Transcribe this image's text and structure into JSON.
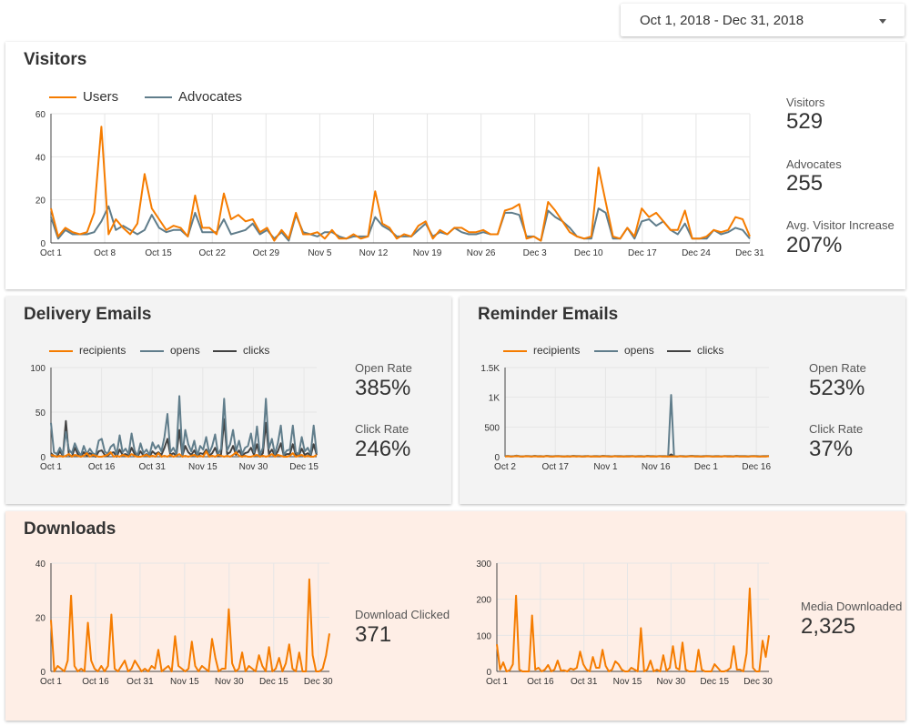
{
  "date_range": {
    "label": "Oct 1, 2018 - Dec 31, 2018"
  },
  "colors": {
    "orange": "#f57c00",
    "slate": "#607d8b",
    "dark": "#455a64",
    "panel_gray": "#f3f3f3",
    "panel_peach": "#feeee6"
  },
  "visitors": {
    "title": "Visitors",
    "legend": [
      "Users",
      "Advocates"
    ],
    "kpis": [
      {
        "label": "Visitors",
        "value": "529"
      },
      {
        "label": "Advocates",
        "value": "255"
      },
      {
        "label": "Avg. Visitor Increase",
        "value": "207%"
      }
    ]
  },
  "delivery": {
    "title": "Delivery Emails",
    "legend": [
      "recipients",
      "opens",
      "clicks"
    ],
    "kpis": [
      {
        "label": "Open Rate",
        "value": "385%"
      },
      {
        "label": "Click Rate",
        "value": "246%"
      }
    ]
  },
  "reminder": {
    "title": "Reminder Emails",
    "legend": [
      "recipients",
      "opens",
      "clicks"
    ],
    "kpis": [
      {
        "label": "Open Rate",
        "value": "523%"
      },
      {
        "label": "Click Rate",
        "value": "37%"
      }
    ]
  },
  "downloads": {
    "title": "Downloads",
    "kpis": [
      {
        "label": "Download Clicked",
        "value": "371"
      },
      {
        "label": "Media Downloaded",
        "value": "2,325"
      }
    ]
  },
  "chart_data": [
    {
      "type": "line",
      "x_ticks": [
        "Oct 1",
        "Oct 8",
        "Oct 15",
        "Oct 22",
        "Oct 29",
        "Nov 5",
        "Nov 12",
        "Nov 19",
        "Nov 26",
        "Dec 3",
        "Dec 10",
        "Dec 17",
        "Dec 24",
        "Dec 31"
      ],
      "y_ticks": [
        0,
        20,
        40,
        60
      ],
      "ylim": [
        0,
        60
      ],
      "series": [
        {
          "name": "Users",
          "color": "#f57c00",
          "values": [
            16,
            3,
            7,
            5,
            4,
            5,
            14,
            54,
            4,
            11,
            7,
            4,
            9,
            32,
            16,
            11,
            6,
            8,
            7,
            3,
            22,
            7,
            7,
            4,
            23,
            11,
            13,
            10,
            11,
            5,
            7,
            1,
            6,
            2,
            14,
            4,
            4,
            5,
            2,
            6,
            2,
            2,
            4,
            2,
            3,
            24,
            9,
            7,
            2,
            4,
            3,
            8,
            10,
            2,
            6,
            4,
            7,
            7,
            5,
            5,
            6,
            4,
            4,
            15,
            16,
            18,
            2,
            3,
            1,
            19,
            15,
            10,
            5,
            3,
            2,
            3,
            35,
            19,
            3,
            2,
            7,
            3,
            16,
            12,
            14,
            10,
            6,
            6,
            15,
            2,
            2,
            3,
            6,
            5,
            6,
            12,
            11,
            3
          ]
        },
        {
          "name": "Advocates",
          "color": "#607d8b",
          "values": [
            12,
            2,
            6,
            4,
            4,
            4,
            5,
            10,
            17,
            6,
            8,
            6,
            4,
            6,
            13,
            7,
            5,
            6,
            6,
            3,
            14,
            5,
            5,
            5,
            11,
            4,
            5,
            6,
            9,
            4,
            6,
            2,
            5,
            1,
            13,
            5,
            4,
            3,
            5,
            5,
            3,
            2,
            3,
            3,
            3,
            12,
            8,
            6,
            3,
            3,
            3,
            6,
            9,
            3,
            5,
            4,
            7,
            5,
            4,
            4,
            5,
            4,
            4,
            14,
            14,
            13,
            3,
            3,
            1,
            15,
            12,
            10,
            7,
            3,
            2,
            2,
            16,
            14,
            2,
            2,
            7,
            2,
            10,
            11,
            8,
            10,
            6,
            4,
            9,
            2,
            2,
            2,
            6,
            4,
            5,
            7,
            6,
            2
          ]
        }
      ]
    },
    {
      "type": "line",
      "x_ticks": [
        "Oct 1",
        "Oct 16",
        "Oct 31",
        "Nov 15",
        "Nov 30",
        "Dec 15"
      ],
      "y_ticks": [
        0,
        50,
        100
      ],
      "ylim": [
        0,
        100
      ],
      "series": [
        {
          "name": "recipients",
          "color": "#f57c00",
          "values": [
            2,
            1,
            0,
            1,
            0,
            1,
            3,
            0,
            2,
            1,
            0,
            1,
            4,
            0,
            2,
            1,
            0,
            0,
            1,
            2,
            5,
            0,
            1,
            0,
            2,
            1,
            0,
            3,
            1,
            0,
            0,
            1,
            2,
            0,
            1,
            0,
            4,
            0,
            1,
            0,
            2,
            0,
            1,
            3,
            0,
            1,
            0,
            1,
            2,
            0,
            1,
            0,
            6,
            0,
            1,
            0,
            2,
            1,
            0,
            1,
            0,
            2,
            5,
            1,
            0,
            1,
            0,
            0,
            1,
            2,
            0,
            1,
            0,
            1,
            3,
            0,
            2,
            1,
            0,
            0,
            1,
            4,
            0,
            1,
            2,
            0,
            1,
            0,
            0,
            2
          ]
        },
        {
          "name": "opens",
          "color": "#607d8b",
          "values": [
            38,
            5,
            3,
            10,
            2,
            28,
            8,
            4,
            15,
            7,
            1,
            12,
            3,
            9,
            4,
            2,
            18,
            20,
            6,
            3,
            11,
            14,
            2,
            24,
            5,
            9,
            3,
            26,
            7,
            1,
            15,
            4,
            8,
            2,
            16,
            9,
            13,
            6,
            22,
            48,
            5,
            10,
            3,
            68,
            2,
            30,
            14,
            6,
            18,
            1,
            12,
            8,
            22,
            4,
            12,
            25,
            3,
            9,
            65,
            7,
            14,
            30,
            6,
            18,
            3,
            10,
            12,
            26,
            5,
            34,
            2,
            10,
            65,
            9,
            20,
            3,
            15,
            35,
            2,
            7,
            8,
            35,
            5,
            3,
            22,
            6,
            10,
            3,
            35,
            4
          ]
        },
        {
          "name": "clicks",
          "color": "#424242",
          "values": [
            4,
            1,
            0,
            6,
            1,
            40,
            2,
            0,
            10,
            3,
            0,
            5,
            1,
            4,
            2,
            0,
            6,
            7,
            2,
            1,
            4,
            5,
            0,
            8,
            2,
            3,
            1,
            10,
            3,
            0,
            6,
            1,
            3,
            0,
            6,
            3,
            5,
            2,
            10,
            20,
            2,
            4,
            1,
            30,
            1,
            12,
            5,
            2,
            7,
            0,
            4,
            3,
            8,
            1,
            4,
            10,
            1,
            3,
            42,
            3,
            5,
            12,
            2,
            7,
            1,
            4,
            5,
            10,
            2,
            14,
            0,
            4,
            38,
            3,
            8,
            1,
            6,
            15,
            1,
            3,
            3,
            14,
            2,
            1,
            9,
            2,
            4,
            1,
            14,
            2
          ]
        }
      ]
    },
    {
      "type": "line",
      "x_ticks": [
        "Oct 2",
        "Oct 17",
        "Nov 1",
        "Nov 16",
        "Dec 1",
        "Dec 16"
      ],
      "y_ticks": [
        "0",
        "500",
        "1K",
        "1.5K"
      ],
      "ylim": [
        0,
        1500
      ],
      "series": [
        {
          "name": "recipients",
          "color": "#f57c00",
          "values": [
            5,
            8,
            4,
            6,
            10,
            5,
            3,
            7,
            6,
            4,
            8,
            5,
            6,
            3,
            9,
            5,
            4,
            6,
            7,
            5,
            3,
            6,
            4,
            8,
            5,
            6,
            4,
            5,
            7,
            3,
            6,
            5,
            4,
            8,
            6,
            5,
            3,
            7,
            5,
            6,
            4,
            6,
            5,
            7,
            4,
            6,
            5,
            3,
            8,
            5,
            6,
            4,
            7,
            5,
            6,
            4,
            5,
            6,
            3,
            7,
            5,
            4,
            6,
            8,
            5,
            6,
            4,
            5,
            7,
            6,
            4,
            5,
            6,
            3,
            7,
            5,
            6,
            4,
            8,
            5,
            6,
            5,
            4,
            6,
            7,
            5,
            4,
            6,
            5,
            7
          ]
        },
        {
          "name": "opens",
          "color": "#607d8b",
          "values": [
            10,
            14,
            8,
            12,
            18,
            9,
            6,
            13,
            11,
            7,
            15,
            9,
            11,
            6,
            16,
            10,
            8,
            12,
            13,
            9,
            6,
            11,
            8,
            15,
            10,
            12,
            8,
            10,
            13,
            6,
            11,
            10,
            8,
            15,
            12,
            10,
            6,
            13,
            10,
            11,
            8,
            12,
            10,
            13,
            8,
            12,
            10,
            6,
            15,
            10,
            12,
            8,
            13,
            10,
            12,
            8,
            1040,
            12,
            6,
            13,
            10,
            8,
            12,
            15,
            10,
            12,
            8,
            10,
            13,
            12,
            8,
            10,
            12,
            6,
            13,
            10,
            12,
            8,
            15,
            10,
            12,
            10,
            8,
            12,
            13,
            10,
            8,
            12,
            10,
            13
          ]
        },
        {
          "name": "clicks",
          "color": "#424242",
          "values": [
            6,
            9,
            5,
            8,
            12,
            6,
            4,
            9,
            7,
            5,
            10,
            6,
            7,
            4,
            11,
            6,
            5,
            8,
            9,
            6,
            4,
            7,
            5,
            10,
            6,
            8,
            5,
            6,
            9,
            4,
            7,
            6,
            5,
            10,
            8,
            6,
            4,
            9,
            6,
            7,
            5,
            8,
            6,
            9,
            5,
            8,
            6,
            4,
            10,
            6,
            8,
            5,
            9,
            6,
            8,
            5,
            40,
            8,
            4,
            9,
            6,
            5,
            8,
            10,
            6,
            8,
            5,
            6,
            9,
            8,
            5,
            6,
            8,
            4,
            9,
            6,
            8,
            5,
            10,
            6,
            8,
            6,
            5,
            8,
            9,
            6,
            5,
            8,
            6,
            9
          ]
        }
      ]
    },
    {
      "type": "line",
      "x_ticks": [
        "Oct 1",
        "Oct 16",
        "Oct 31",
        "Nov 15",
        "Nov 30",
        "Dec 15",
        "Dec 30"
      ],
      "y_ticks": [
        0,
        20,
        40
      ],
      "ylim": [
        0,
        40
      ],
      "series": [
        {
          "name": "",
          "color": "#f57c00",
          "values": [
            19,
            0,
            2,
            1,
            0,
            4,
            28,
            2,
            0,
            1,
            0,
            18,
            4,
            1,
            0,
            2,
            0,
            2,
            21,
            1,
            0,
            2,
            4,
            0,
            1,
            4,
            2,
            0,
            1,
            0,
            2,
            1,
            8,
            0,
            1,
            2,
            0,
            13,
            2,
            1,
            0,
            1,
            11,
            2,
            0,
            2,
            1,
            0,
            12,
            5,
            0,
            1,
            1,
            23,
            3,
            0,
            1,
            7,
            0,
            2,
            1,
            0,
            6,
            2,
            0,
            9,
            0,
            1,
            5,
            0,
            3,
            10,
            1,
            0,
            7,
            0,
            0,
            34,
            6,
            0,
            0,
            1,
            6,
            14
          ]
        }
      ]
    },
    {
      "type": "line",
      "x_ticks": [
        "Oct 1",
        "Oct 16",
        "Oct 31",
        "Nov 15",
        "Nov 30",
        "Dec 15",
        "Dec 30"
      ],
      "y_ticks": [
        0,
        100,
        200,
        300
      ],
      "ylim": [
        0,
        300
      ],
      "series": [
        {
          "name": "",
          "color": "#f57c00",
          "values": [
            75,
            5,
            25,
            0,
            3,
            20,
            210,
            5,
            0,
            0,
            0,
            155,
            5,
            10,
            0,
            5,
            18,
            0,
            5,
            30,
            2,
            3,
            0,
            8,
            5,
            10,
            55,
            20,
            5,
            0,
            40,
            10,
            10,
            60,
            15,
            0,
            5,
            28,
            20,
            5,
            0,
            0,
            10,
            5,
            0,
            120,
            0,
            5,
            30,
            0,
            5,
            0,
            45,
            2,
            10,
            70,
            10,
            5,
            80,
            5,
            0,
            0,
            0,
            60,
            5,
            0,
            0,
            0,
            20,
            10,
            0,
            0,
            3,
            10,
            70,
            5,
            5,
            0,
            50,
            230,
            10,
            0,
            0,
            85,
            40,
            100
          ]
        }
      ]
    }
  ]
}
